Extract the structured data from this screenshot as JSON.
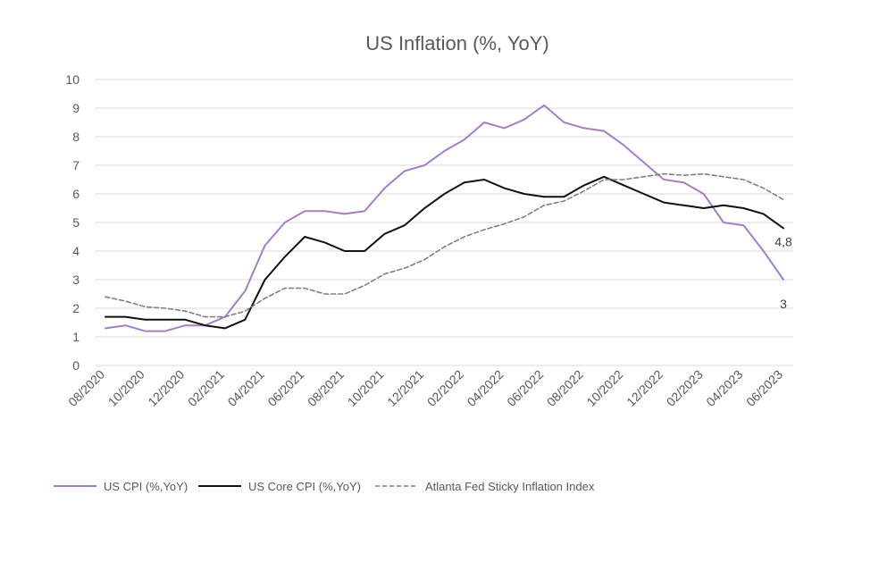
{
  "chart_data": {
    "type": "line",
    "title": "US Inflation (%, YoY)",
    "xlabel": "",
    "ylabel": "",
    "ylim": [
      0,
      10
    ],
    "yticks": [
      0,
      1,
      2,
      3,
      4,
      5,
      6,
      7,
      8,
      9,
      10
    ],
    "grid": "horizontal",
    "legend_position": "bottom-left",
    "x": [
      "08/2020",
      "09/2020",
      "10/2020",
      "11/2020",
      "12/2020",
      "01/2021",
      "02/2021",
      "03/2021",
      "04/2021",
      "05/2021",
      "06/2021",
      "07/2021",
      "08/2021",
      "09/2021",
      "10/2021",
      "11/2021",
      "12/2021",
      "01/2022",
      "02/2022",
      "03/2022",
      "04/2022",
      "05/2022",
      "06/2022",
      "07/2022",
      "08/2022",
      "09/2022",
      "10/2022",
      "11/2022",
      "12/2022",
      "01/2023",
      "02/2023",
      "03/2023",
      "04/2023",
      "05/2023",
      "06/2023"
    ],
    "tick_labels": [
      "08/2020",
      "10/2020",
      "12/2020",
      "02/2021",
      "04/2021",
      "06/2021",
      "08/2021",
      "10/2021",
      "12/2021",
      "02/2022",
      "04/2022",
      "06/2022",
      "08/2022",
      "10/2022",
      "12/2022",
      "02/2023",
      "04/2023",
      "06/2023"
    ],
    "series": [
      {
        "name": "US CPI (%,YoY)",
        "color": "#a57fc0",
        "dash": "solid",
        "values": [
          1.3,
          1.4,
          1.2,
          1.2,
          1.4,
          1.4,
          1.7,
          2.6,
          4.2,
          5.0,
          5.4,
          5.4,
          5.3,
          5.4,
          6.2,
          6.8,
          7.0,
          7.5,
          7.9,
          8.5,
          8.3,
          8.6,
          9.1,
          8.5,
          8.3,
          8.2,
          7.7,
          7.1,
          6.5,
          6.4,
          6.0,
          5.0,
          4.9,
          4.0,
          3.0
        ]
      },
      {
        "name": "US Core CPI (%,YoY)",
        "color": "#111111",
        "dash": "solid",
        "values": [
          1.7,
          1.7,
          1.6,
          1.6,
          1.6,
          1.4,
          1.3,
          1.6,
          3.0,
          3.8,
          4.5,
          4.3,
          4.0,
          4.0,
          4.6,
          4.9,
          5.5,
          6.0,
          6.4,
          6.5,
          6.2,
          6.0,
          5.9,
          5.9,
          6.3,
          6.6,
          6.3,
          6.0,
          5.7,
          5.6,
          5.5,
          5.6,
          5.5,
          5.3,
          4.8
        ]
      },
      {
        "name": "Atlanta Fed Sticky Inflation Index",
        "color": "#808080",
        "dash": "dashed",
        "values": [
          2.4,
          2.25,
          2.05,
          2.0,
          1.9,
          1.7,
          1.7,
          1.9,
          2.35,
          2.7,
          2.7,
          2.5,
          2.5,
          2.8,
          3.2,
          3.4,
          3.7,
          4.15,
          4.5,
          4.75,
          4.95,
          5.2,
          5.6,
          5.75,
          6.1,
          6.5,
          6.5,
          6.6,
          6.7,
          6.65,
          6.7,
          6.6,
          6.5,
          6.2,
          5.8
        ]
      }
    ],
    "annotations": [
      {
        "series": 1,
        "index": 34,
        "text": "4,8"
      },
      {
        "series": 0,
        "index": 34,
        "text": "3"
      }
    ]
  }
}
